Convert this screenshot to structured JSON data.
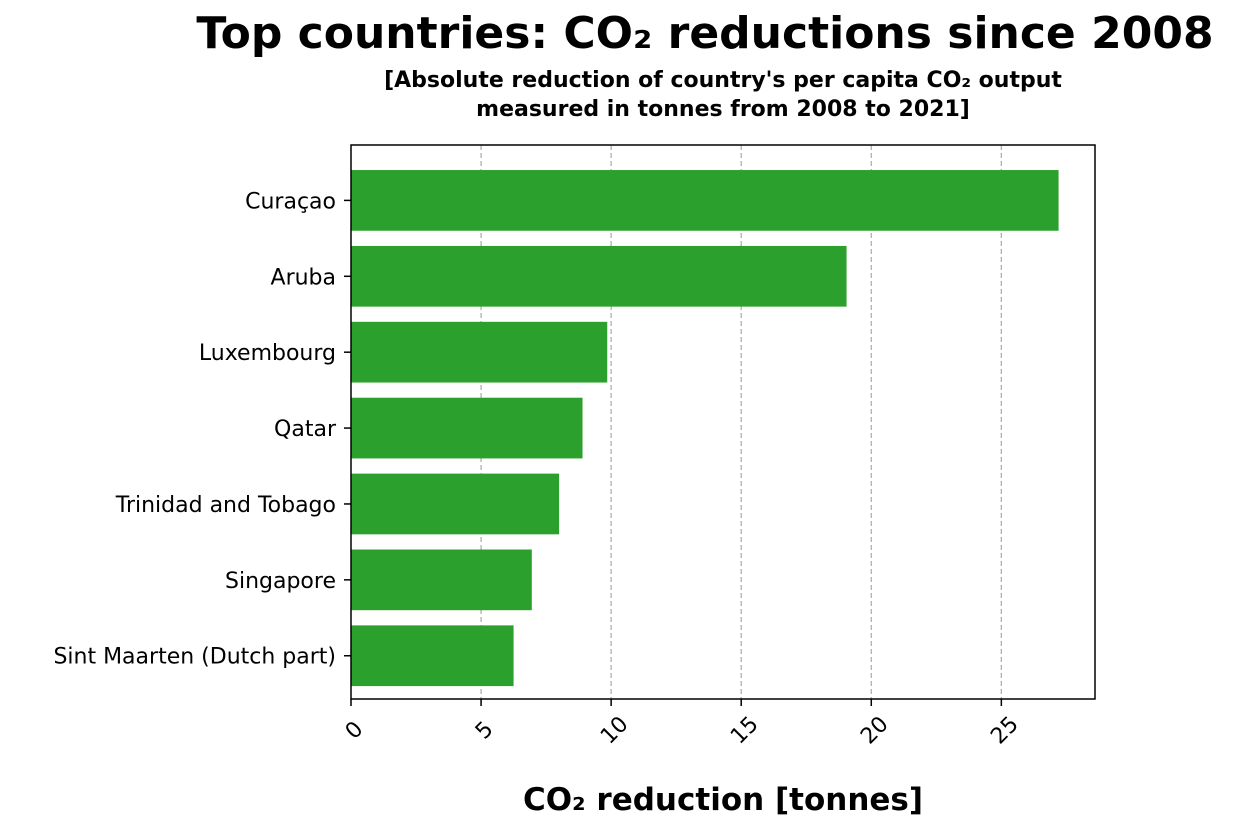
{
  "chart_data": {
    "type": "bar",
    "orientation": "horizontal",
    "title": "Top countries: CO₂ reductions since 2008",
    "subtitle_line1": "[Absolute reduction of country's per capita CO₂ output",
    "subtitle_line2": "measured in tonnes from 2008 to 2021]",
    "xlabel": "CO₂ reduction [tonnes]",
    "ylabel": "",
    "categories": [
      "Curaçao",
      "Aruba",
      "Luxembourg",
      "Qatar",
      "Trinidad and Tobago",
      "Singapore",
      "Sint Maarten (Dutch part)"
    ],
    "values": [
      27.2,
      19.05,
      9.85,
      8.9,
      8.0,
      6.95,
      6.25
    ],
    "xlim": [
      0,
      28.6
    ],
    "xticks": [
      0,
      5,
      10,
      15,
      20,
      25
    ],
    "grid": "vertical dashed",
    "bar_color": "#2ca02c",
    "grid_color": "#b0b0b0"
  }
}
